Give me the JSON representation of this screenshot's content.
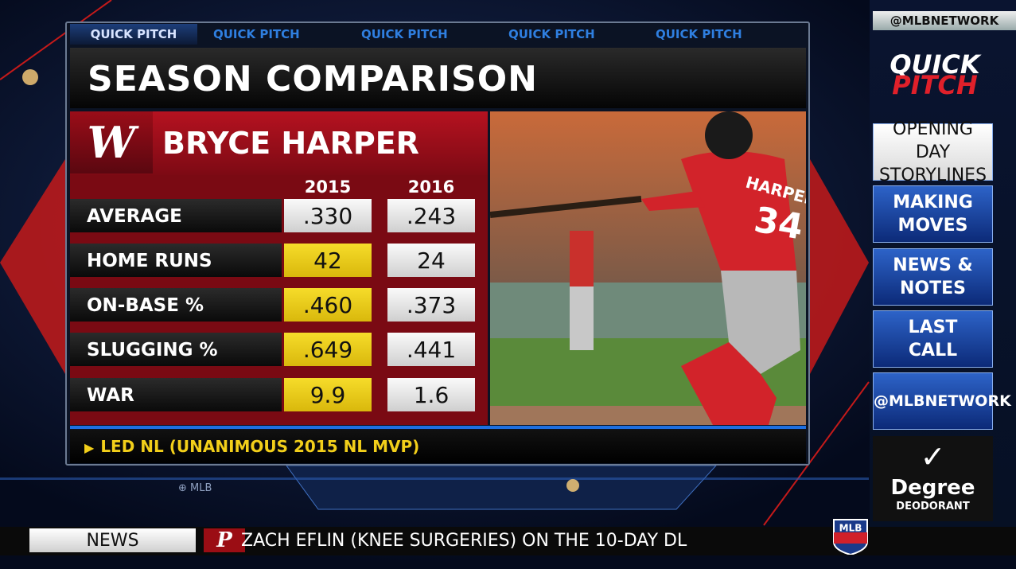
{
  "tabs": [
    "QUICK PITCH",
    "QUICK PITCH",
    "QUICK PITCH",
    "QUICK PITCH",
    "QUICK PITCH"
  ],
  "title": "SEASON COMPARISON",
  "team_logo": "W",
  "player": "BRYCE HARPER",
  "table": {
    "columns": [
      "2015",
      "2016"
    ],
    "rows": [
      {
        "label": "AVERAGE",
        "values": [
          ".330",
          ".243"
        ],
        "highlight": [
          false,
          false
        ]
      },
      {
        "label": "HOME RUNS",
        "values": [
          "42",
          "24"
        ],
        "highlight": [
          true,
          false
        ]
      },
      {
        "label": "ON-BASE %",
        "values": [
          ".460",
          ".373"
        ],
        "highlight": [
          true,
          false
        ]
      },
      {
        "label": "SLUGGING %",
        "values": [
          ".649",
          ".441"
        ],
        "highlight": [
          true,
          false
        ]
      },
      {
        "label": "WAR",
        "values": [
          "9.9",
          "1.6"
        ],
        "highlight": [
          true,
          false
        ]
      }
    ]
  },
  "photo": {
    "jersey_name": "HARPER",
    "jersey_number": "34"
  },
  "footnote": "LED NL (UNANIMOUS 2015 NL MVP)",
  "watermark": "MLB",
  "sidebar": {
    "handle": "@MLBNETWORK",
    "logo": [
      "QUICK",
      "PITCH"
    ],
    "menu": [
      [
        "OPENING DAY",
        "STORYLINES"
      ],
      [
        "MAKING",
        "MOVES"
      ],
      [
        "NEWS &",
        "NOTES"
      ],
      [
        "LAST",
        "CALL"
      ],
      [
        "@MLBNETWORK"
      ]
    ],
    "ad": {
      "brand": "Degree",
      "product": "DEODORANT"
    }
  },
  "ticker": {
    "label": "NEWS",
    "team_logo": "P",
    "text": "ZACH EFLIN (KNEE SURGERIES) ON THE 10-DAY DL"
  },
  "network_logo": "MLB"
}
